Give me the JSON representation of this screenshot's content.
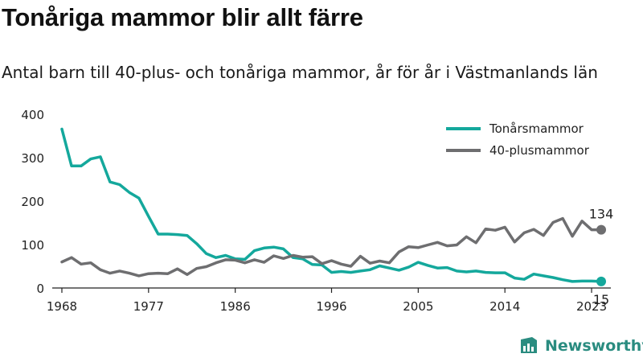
{
  "header": {
    "title": "Tonåriga mammor blir allt färre",
    "subtitle": "Antal barn till 40-plus- och tonåriga mammor, år för år i Västmanlands län"
  },
  "brand": {
    "name": "Newsworthy",
    "icon": "newsworthy-logo-icon"
  },
  "colors": {
    "teal": "#14a89c",
    "gray": "#6e6e70",
    "axis": "#222222",
    "text": "#222222"
  },
  "chart_data": {
    "type": "line",
    "title": "",
    "xlabel": "",
    "ylabel": "",
    "xlim": [
      1967,
      2025
    ],
    "ylim": [
      0,
      400
    ],
    "grid": false,
    "legend_position": "top-right",
    "x_ticks": [
      "1968",
      "1977",
      "1986",
      "1996",
      "2005",
      "2014",
      "2023"
    ],
    "y_ticks": [
      "0",
      "100",
      "200",
      "300",
      "400"
    ],
    "x": [
      1968,
      1969,
      1970,
      1971,
      1972,
      1973,
      1974,
      1975,
      1976,
      1977,
      1978,
      1979,
      1980,
      1981,
      1982,
      1983,
      1984,
      1985,
      1986,
      1987,
      1988,
      1989,
      1990,
      1991,
      1992,
      1993,
      1994,
      1995,
      1996,
      1997,
      1998,
      1999,
      2000,
      2001,
      2002,
      2003,
      2004,
      2005,
      2006,
      2007,
      2008,
      2009,
      2010,
      2011,
      2012,
      2013,
      2014,
      2015,
      2016,
      2017,
      2018,
      2019,
      2020,
      2021,
      2022,
      2023,
      2024
    ],
    "series": [
      {
        "name": "Tonårsmammor",
        "color": "#14a89c",
        "values": [
          366,
          281,
          281,
          297,
          302,
          244,
          238,
          220,
          207,
          165,
          124,
          124,
          123,
          121,
          102,
          79,
          70,
          75,
          67,
          66,
          86,
          92,
          94,
          90,
          70,
          67,
          54,
          53,
          36,
          38,
          36,
          39,
          42,
          51,
          46,
          41,
          48,
          59,
          52,
          46,
          47,
          39,
          37,
          39,
          36,
          35,
          35,
          23,
          20,
          32,
          28,
          24,
          19,
          15,
          16,
          16,
          15
        ],
        "end_label": "15"
      },
      {
        "name": "40-plusmammor",
        "color": "#6e6e70",
        "values": [
          60,
          70,
          55,
          58,
          42,
          34,
          39,
          34,
          28,
          33,
          34,
          33,
          44,
          31,
          45,
          49,
          58,
          65,
          64,
          58,
          65,
          59,
          74,
          68,
          75,
          71,
          72,
          56,
          63,
          55,
          50,
          73,
          57,
          62,
          58,
          83,
          95,
          93,
          99,
          105,
          97,
          99,
          118,
          104,
          136,
          133,
          140,
          106,
          127,
          135,
          121,
          151,
          160,
          119,
          154,
          134,
          134
        ],
        "end_label": "134"
      }
    ]
  }
}
